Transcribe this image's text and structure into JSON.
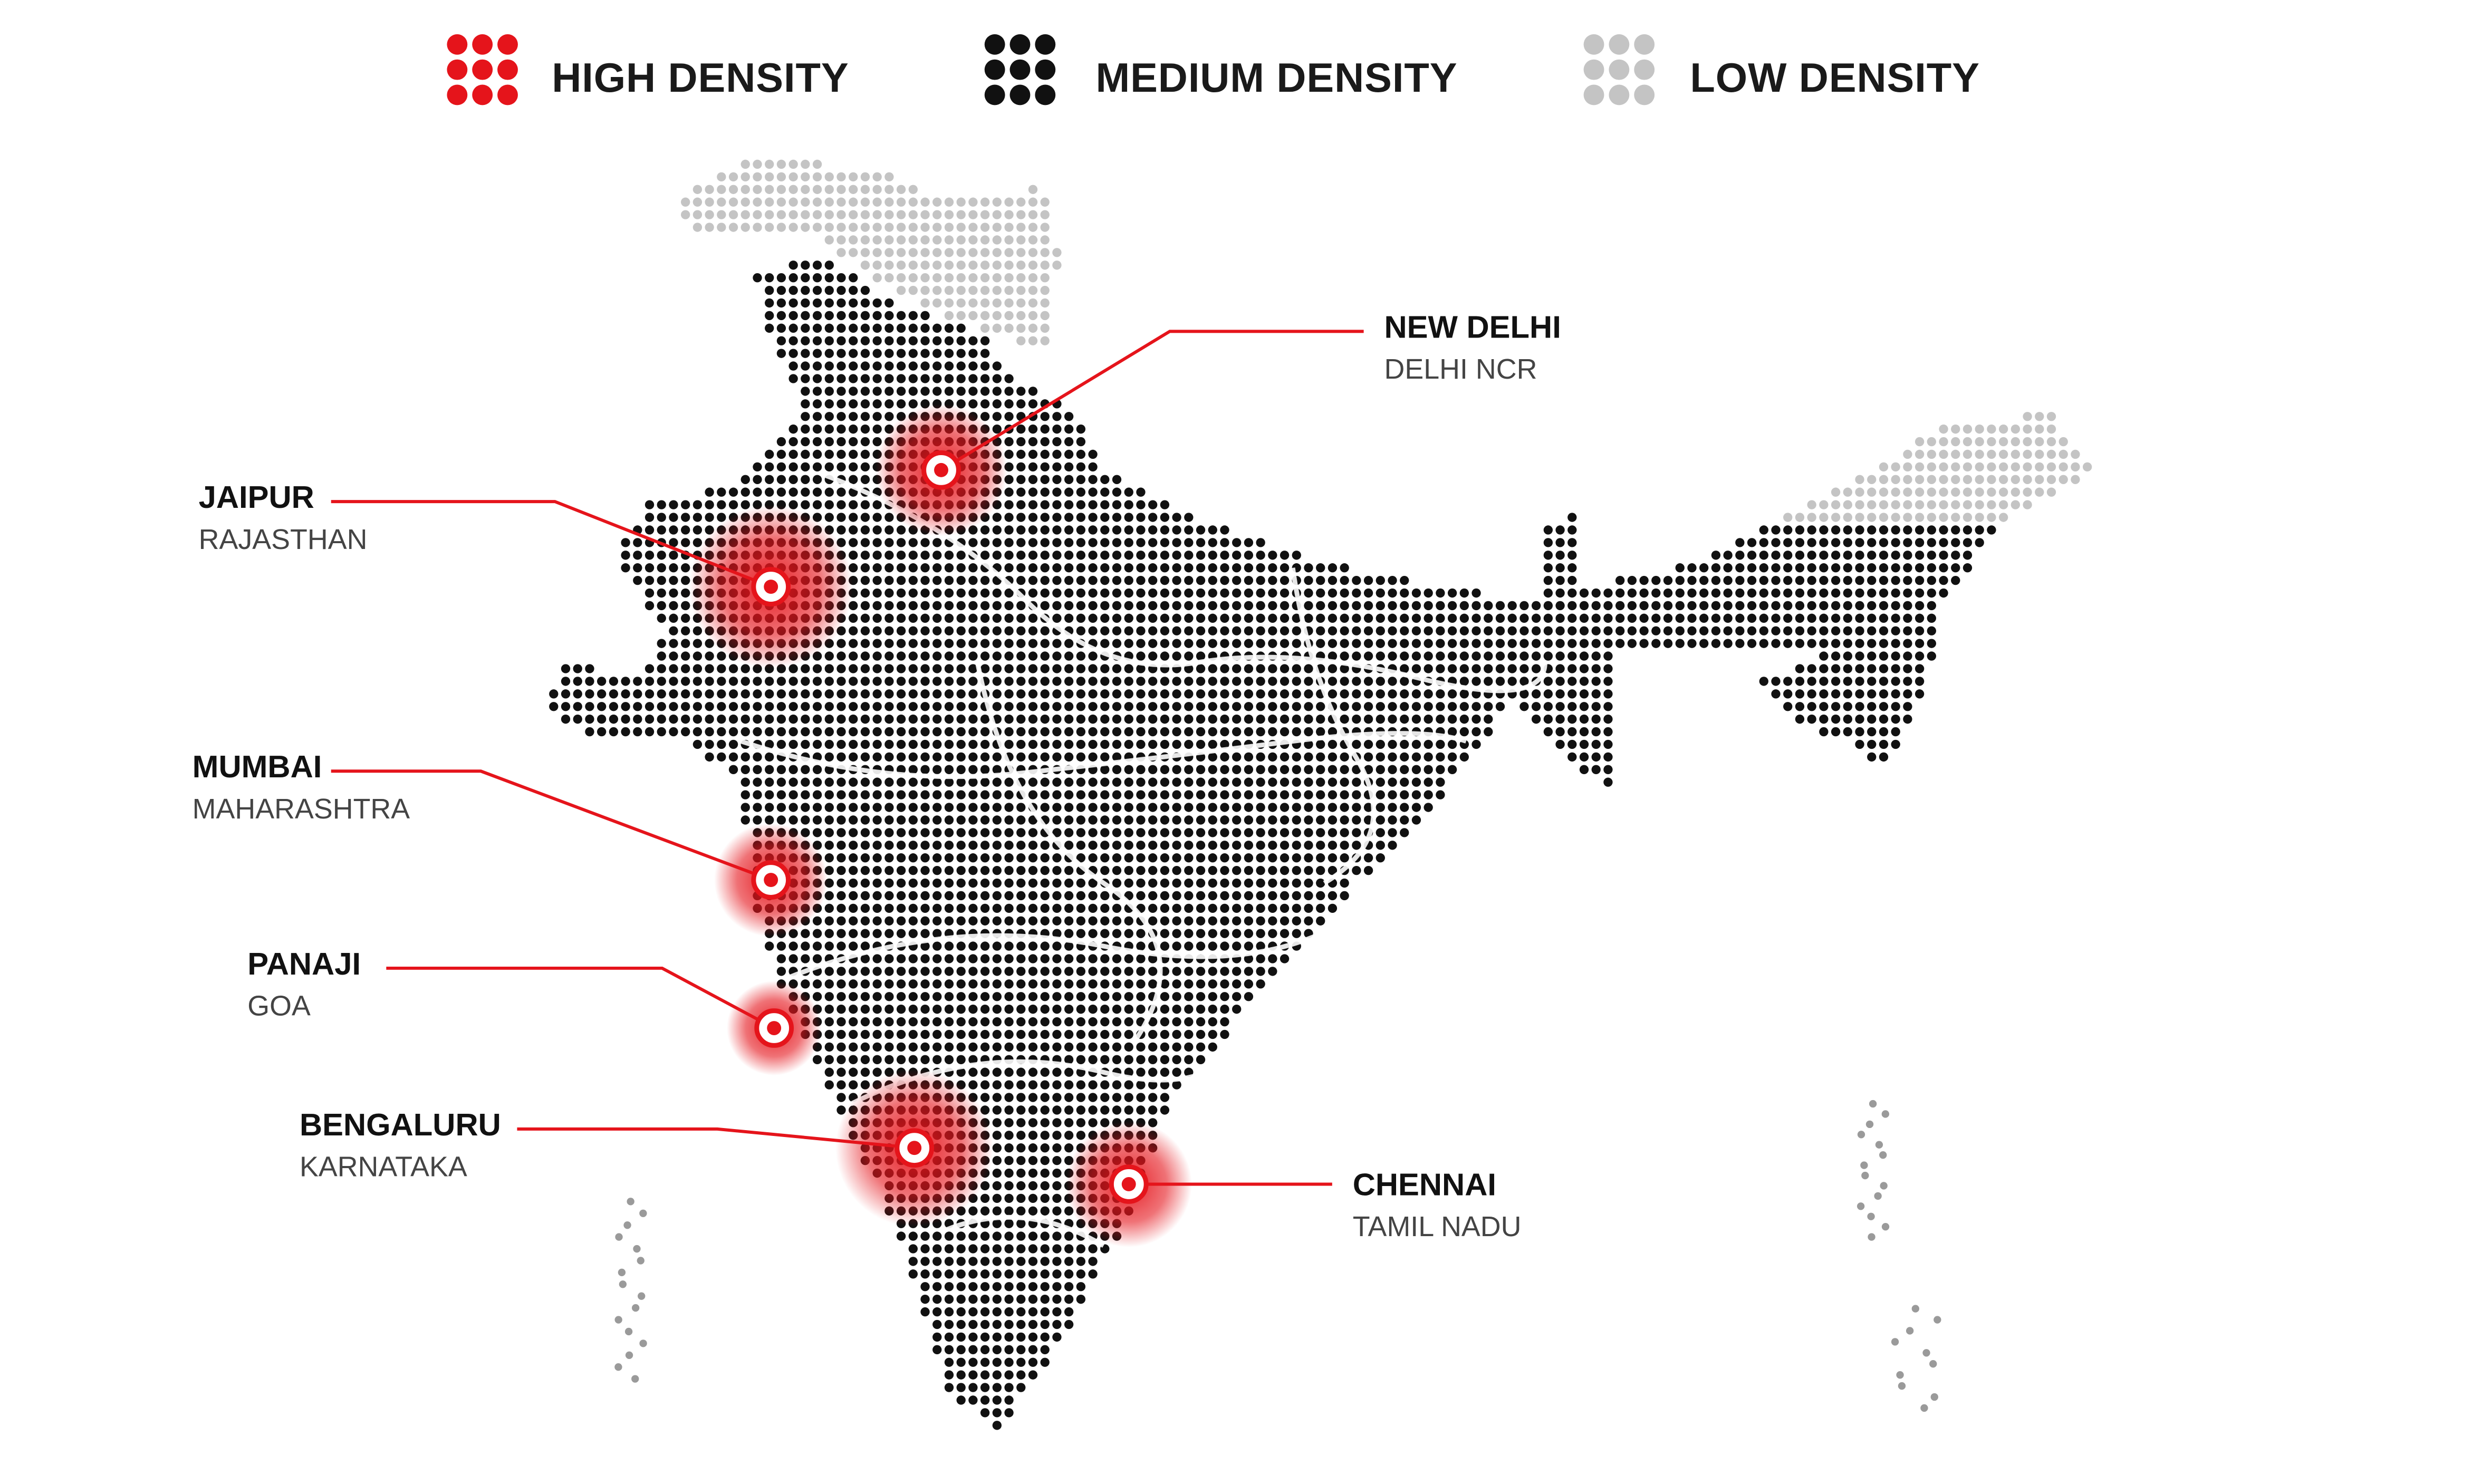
{
  "legend": [
    {
      "label": "HIGH DENSITY",
      "color": "#e5141b"
    },
    {
      "label": "MEDIUM DENSITY",
      "color": "#111111"
    },
    {
      "label": "LOW DENSITY",
      "color": "#c4c4c4"
    }
  ],
  "cities": [
    {
      "name": "NEW DELHI",
      "region": "DELHI NCR"
    },
    {
      "name": "JAIPUR",
      "region": "RAJASTHAN"
    },
    {
      "name": "MUMBAI",
      "region": "MAHARASHTRA"
    },
    {
      "name": "PANAJI",
      "region": "GOA"
    },
    {
      "name": "BENGALURU",
      "region": "KARNATAKA"
    },
    {
      "name": "CHENNAI",
      "region": "TAMIL NADU"
    }
  ]
}
